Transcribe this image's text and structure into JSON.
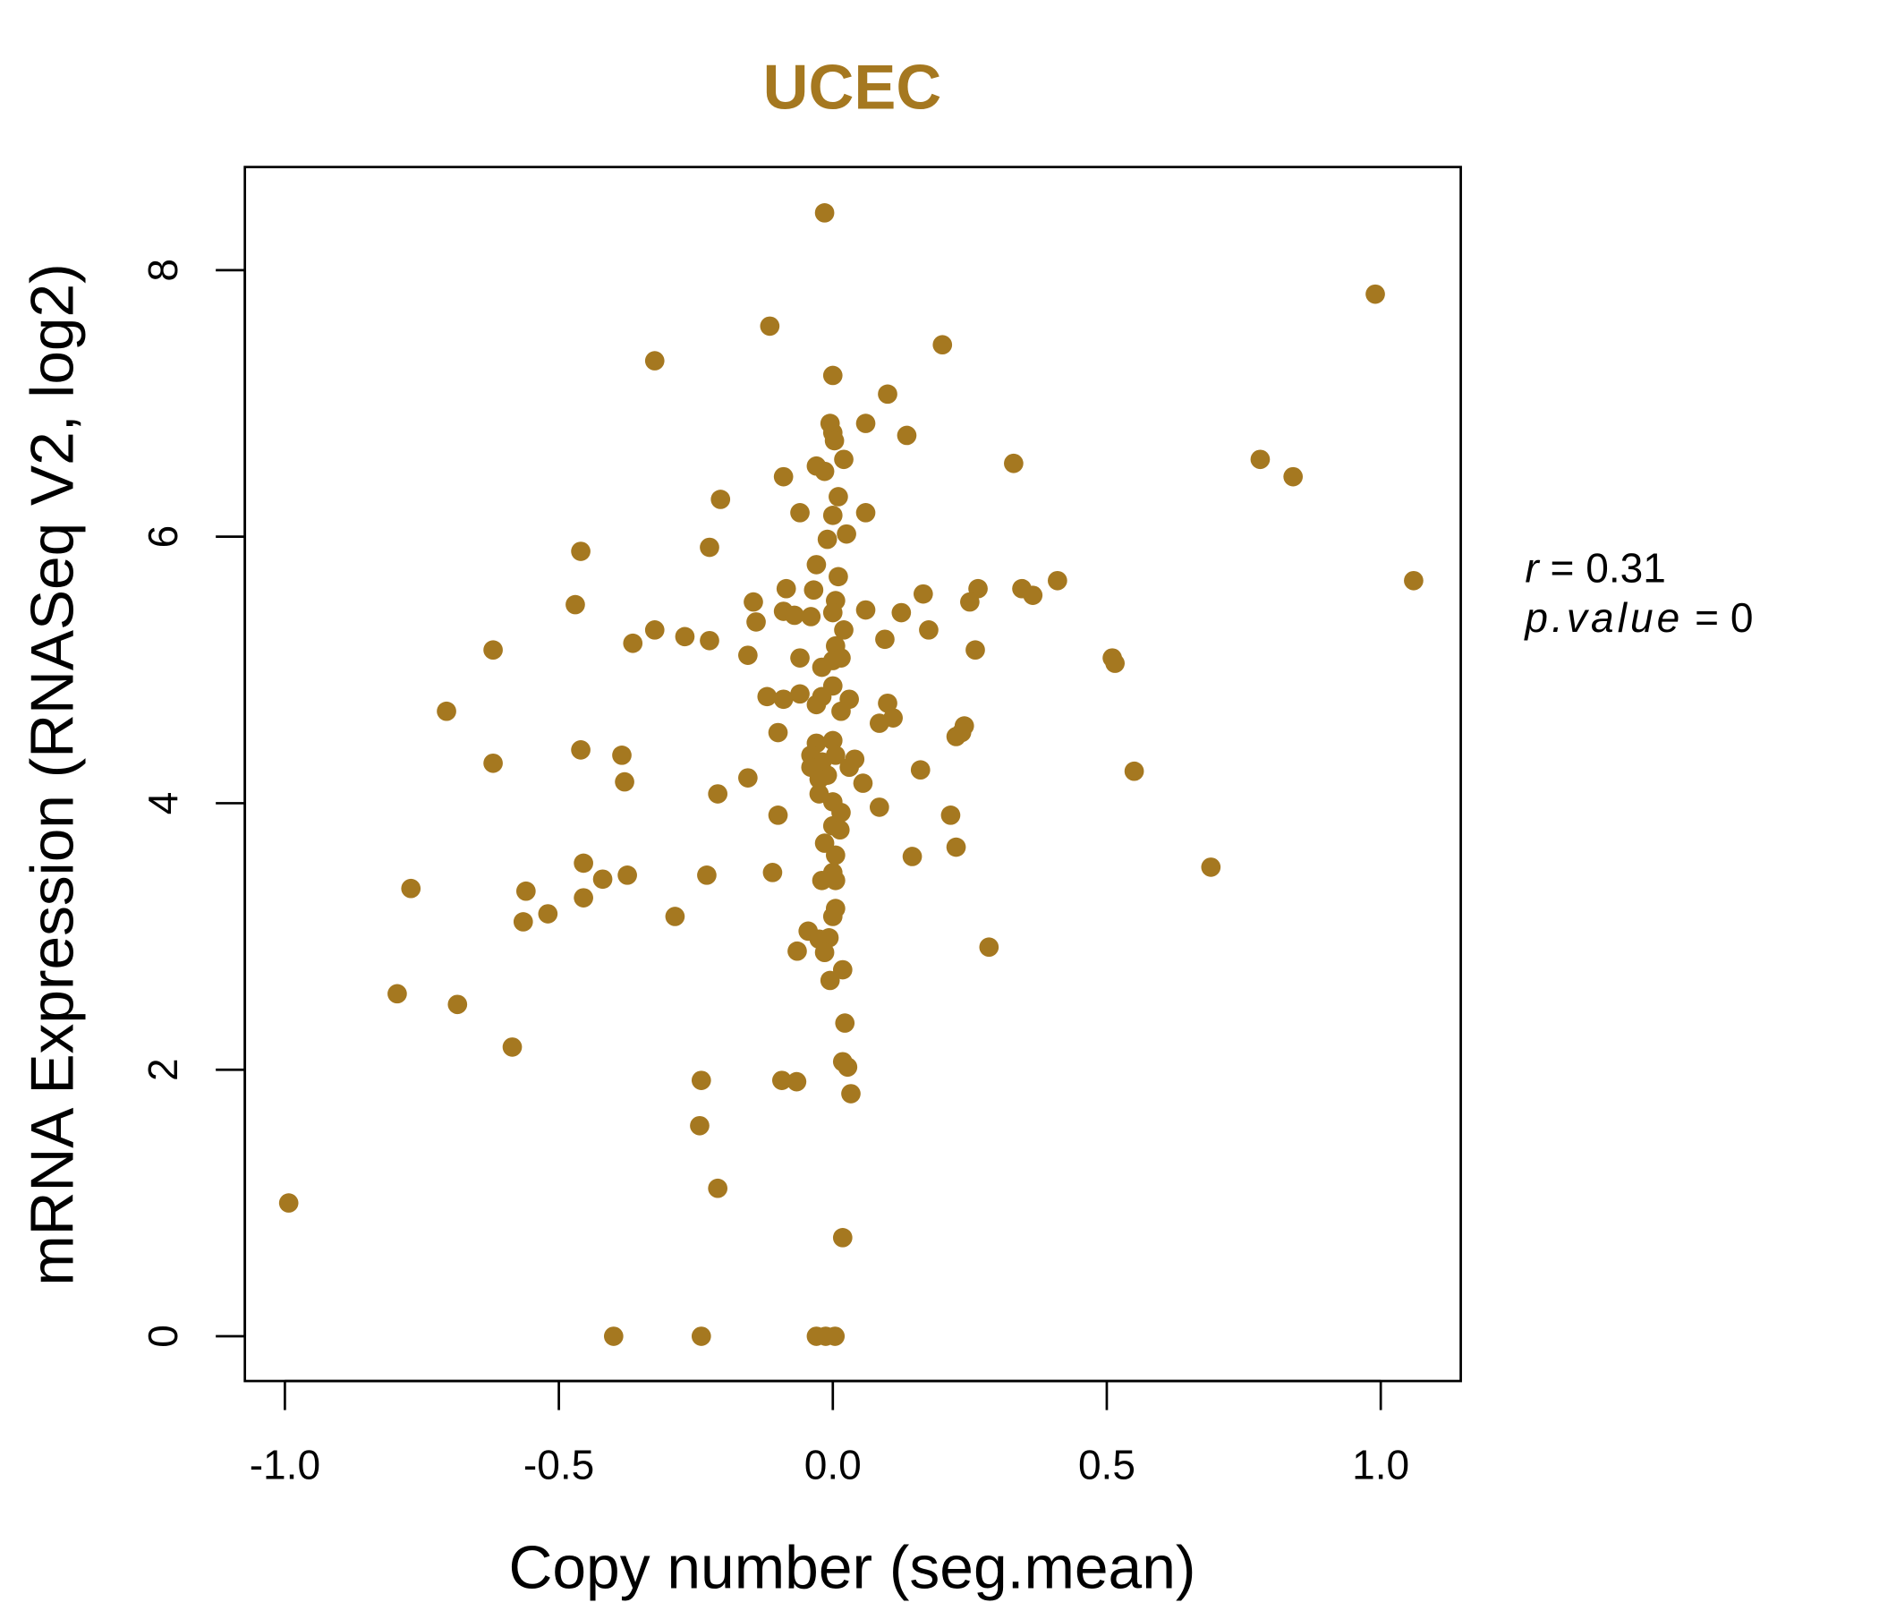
{
  "chart_data": {
    "type": "scatter",
    "title": "UCEC",
    "xlabel": "Copy number (seg.mean)",
    "ylabel": "mRNA Expression (RNASeq V2, log2)",
    "xlim": [
      -1.075,
      1.145
    ],
    "ylim": [
      -0.33,
      8.78
    ],
    "xticks": [
      -1.0,
      -0.5,
      0.0,
      0.5,
      1.0
    ],
    "xtick_labels": [
      "-1.0",
      "-0.5",
      "0.0",
      "0.5",
      "1.0"
    ],
    "yticks": [
      0,
      2,
      4,
      6,
      8
    ],
    "ytick_labels": [
      "0",
      "2",
      "4",
      "6",
      "8"
    ],
    "grid": false,
    "point_color": "#A57820",
    "title_color": "#A57820",
    "annotation": {
      "r_label": "r",
      "r_value": "0.31",
      "p_label": "p.value",
      "p_value": "0"
    },
    "points": [
      [
        -0.015,
        8.43
      ],
      [
        0.99,
        7.82
      ],
      [
        -0.115,
        7.58
      ],
      [
        0.2,
        7.44
      ],
      [
        -0.325,
        7.32
      ],
      [
        0.0,
        7.21
      ],
      [
        0.1,
        7.07
      ],
      [
        -0.005,
        6.85
      ],
      [
        0.06,
        6.85
      ],
      [
        0.0,
        6.78
      ],
      [
        0.003,
        6.72
      ],
      [
        0.135,
        6.76
      ],
      [
        0.02,
        6.58
      ],
      [
        0.33,
        6.55
      ],
      [
        0.78,
        6.58
      ],
      [
        0.84,
        6.45
      ],
      [
        -0.03,
        6.53
      ],
      [
        -0.015,
        6.49
      ],
      [
        -0.09,
        6.45
      ],
      [
        -0.205,
        6.28
      ],
      [
        0.01,
        6.3
      ],
      [
        -0.06,
        6.18
      ],
      [
        0.0,
        6.16
      ],
      [
        0.06,
        6.18
      ],
      [
        0.025,
        6.02
      ],
      [
        -0.01,
        5.98
      ],
      [
        -0.225,
        5.92
      ],
      [
        -0.46,
        5.89
      ],
      [
        -0.03,
        5.79
      ],
      [
        0.01,
        5.7
      ],
      [
        1.06,
        5.67
      ],
      [
        0.41,
        5.67
      ],
      [
        0.345,
        5.61
      ],
      [
        0.365,
        5.56
      ],
      [
        0.265,
        5.61
      ],
      [
        0.25,
        5.51
      ],
      [
        0.165,
        5.57
      ],
      [
        -0.085,
        5.61
      ],
      [
        -0.035,
        5.6
      ],
      [
        -0.145,
        5.51
      ],
      [
        0.005,
        5.52
      ],
      [
        -0.47,
        5.49
      ],
      [
        0.06,
        5.45
      ],
      [
        0.125,
        5.43
      ],
      [
        -0.09,
        5.44
      ],
      [
        -0.07,
        5.41
      ],
      [
        -0.04,
        5.4
      ],
      [
        0.0,
        5.43
      ],
      [
        -0.14,
        5.36
      ],
      [
        0.175,
        5.3
      ],
      [
        0.02,
        5.3
      ],
      [
        -0.325,
        5.3
      ],
      [
        -0.27,
        5.25
      ],
      [
        -0.225,
        5.22
      ],
      [
        0.095,
        5.23
      ],
      [
        -0.365,
        5.2
      ],
      [
        0.005,
        5.18
      ],
      [
        0.26,
        5.15
      ],
      [
        -0.62,
        5.15
      ],
      [
        -0.155,
        5.11
      ],
      [
        0.51,
        5.09
      ],
      [
        0.515,
        5.05
      ],
      [
        -0.06,
        5.09
      ],
      [
        0.015,
        5.09
      ],
      [
        0.0,
        5.07
      ],
      [
        -0.02,
        5.02
      ],
      [
        0.0,
        4.88
      ],
      [
        -0.12,
        4.8
      ],
      [
        -0.06,
        4.82
      ],
      [
        -0.09,
        4.78
      ],
      [
        -0.02,
        4.8
      ],
      [
        0.03,
        4.78
      ],
      [
        0.1,
        4.75
      ],
      [
        -0.03,
        4.74
      ],
      [
        0.015,
        4.69
      ],
      [
        -0.705,
        4.69
      ],
      [
        0.11,
        4.64
      ],
      [
        0.085,
        4.6
      ],
      [
        0.24,
        4.58
      ],
      [
        0.235,
        4.53
      ],
      [
        0.225,
        4.5
      ],
      [
        -0.1,
        4.53
      ],
      [
        0.0,
        4.47
      ],
      [
        -0.03,
        4.45
      ],
      [
        -0.46,
        4.4
      ],
      [
        -0.385,
        4.36
      ],
      [
        -0.04,
        4.36
      ],
      [
        0.005,
        4.36
      ],
      [
        0.04,
        4.33
      ],
      [
        -0.02,
        4.31
      ],
      [
        -0.04,
        4.27
      ],
      [
        0.03,
        4.27
      ],
      [
        -0.62,
        4.3
      ],
      [
        0.16,
        4.25
      ],
      [
        0.55,
        4.24
      ],
      [
        -0.01,
        4.21
      ],
      [
        -0.025,
        4.18
      ],
      [
        -0.155,
        4.19
      ],
      [
        -0.38,
        4.16
      ],
      [
        0.055,
        4.15
      ],
      [
        -0.21,
        4.07
      ],
      [
        -0.025,
        4.07
      ],
      [
        0.0,
        4.01
      ],
      [
        0.085,
        3.97
      ],
      [
        0.015,
        3.93
      ],
      [
        -0.1,
        3.91
      ],
      [
        0.215,
        3.91
      ],
      [
        0.0,
        3.83
      ],
      [
        0.013,
        3.8
      ],
      [
        -0.015,
        3.7
      ],
      [
        0.225,
        3.67
      ],
      [
        0.005,
        3.61
      ],
      [
        0.145,
        3.6
      ],
      [
        -0.455,
        3.55
      ],
      [
        0.69,
        3.52
      ],
      [
        -0.11,
        3.48
      ],
      [
        -0.23,
        3.46
      ],
      [
        -0.375,
        3.46
      ],
      [
        0.0,
        3.48
      ],
      [
        -0.02,
        3.42
      ],
      [
        0.005,
        3.42
      ],
      [
        -0.42,
        3.43
      ],
      [
        -0.77,
        3.36
      ],
      [
        -0.56,
        3.34
      ],
      [
        -0.455,
        3.29
      ],
      [
        -0.52,
        3.17
      ],
      [
        -0.288,
        3.15
      ],
      [
        0.005,
        3.21
      ],
      [
        0.0,
        3.15
      ],
      [
        -0.565,
        3.11
      ],
      [
        -0.045,
        3.04
      ],
      [
        -0.025,
        2.98
      ],
      [
        -0.007,
        2.99
      ],
      [
        0.285,
        2.92
      ],
      [
        -0.065,
        2.89
      ],
      [
        -0.015,
        2.88
      ],
      [
        0.018,
        2.75
      ],
      [
        -0.005,
        2.67
      ],
      [
        -0.795,
        2.57
      ],
      [
        -0.685,
        2.49
      ],
      [
        0.022,
        2.35
      ],
      [
        -0.585,
        2.17
      ],
      [
        0.018,
        2.06
      ],
      [
        0.027,
        2.02
      ],
      [
        -0.24,
        1.92
      ],
      [
        -0.093,
        1.92
      ],
      [
        -0.066,
        1.91
      ],
      [
        0.033,
        1.82
      ],
      [
        -0.243,
        1.58
      ],
      [
        -0.21,
        1.11
      ],
      [
        -0.993,
        1.0
      ],
      [
        0.018,
        0.74
      ],
      [
        -0.4,
        0
      ],
      [
        -0.24,
        0
      ],
      [
        -0.03,
        0
      ],
      [
        -0.013,
        0
      ],
      [
        0.004,
        0
      ]
    ]
  }
}
